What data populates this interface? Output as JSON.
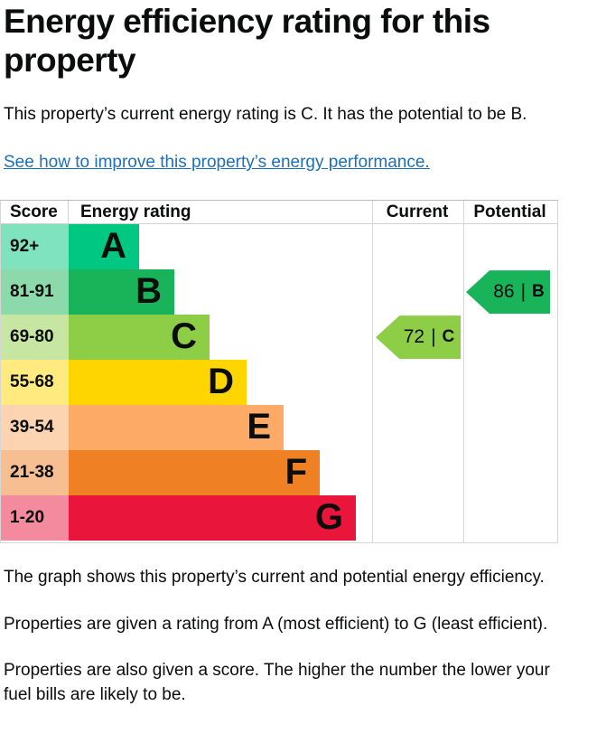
{
  "header": {
    "title": "Energy efficiency rating for this property"
  },
  "intro": {
    "text": "This property’s current energy rating is C. It has the potential to be B.",
    "link_label": "See how to improve this property’s energy performance."
  },
  "chart_data": {
    "type": "bar",
    "title": "Energy efficiency rating for this property",
    "columns": {
      "score": "Score",
      "rating": "Energy rating",
      "current": "Current",
      "potential": "Potential"
    },
    "bands": [
      {
        "letter": "A",
        "score_range": "92+",
        "color": "#00c781",
        "tint": "#7fe3c0",
        "band_width": 78
      },
      {
        "letter": "B",
        "score_range": "81-91",
        "color": "#19b459",
        "tint": "#8cd9ac",
        "band_width": 117
      },
      {
        "letter": "C",
        "score_range": "69-80",
        "color": "#8dce46",
        "tint": "#c6e6a2",
        "band_width": 156
      },
      {
        "letter": "D",
        "score_range": "55-68",
        "color": "#ffd500",
        "tint": "#ffea7f",
        "band_width": 197
      },
      {
        "letter": "E",
        "score_range": "39-54",
        "color": "#fcaa65",
        "tint": "#fdd4b2",
        "band_width": 238
      },
      {
        "letter": "F",
        "score_range": "21-38",
        "color": "#ef8023",
        "tint": "#f7bf91",
        "band_width": 278
      },
      {
        "letter": "G",
        "score_range": "1-20",
        "color": "#e9153b",
        "tint": "#f48a9d",
        "band_width": 318
      }
    ],
    "current": {
      "value": "72",
      "divider": "|",
      "band": "C",
      "color": "#8dce46"
    },
    "potential": {
      "value": "86",
      "divider": "|",
      "band": "B",
      "color": "#19b459"
    }
  },
  "footer": {
    "p1": "The graph shows this property’s current and potential energy efficiency.",
    "p2": "Properties are given a rating from A (most efficient) to G (least efficient).",
    "p3": "Properties are also given a score. The higher the number the lower your fuel bills are likely to be."
  }
}
